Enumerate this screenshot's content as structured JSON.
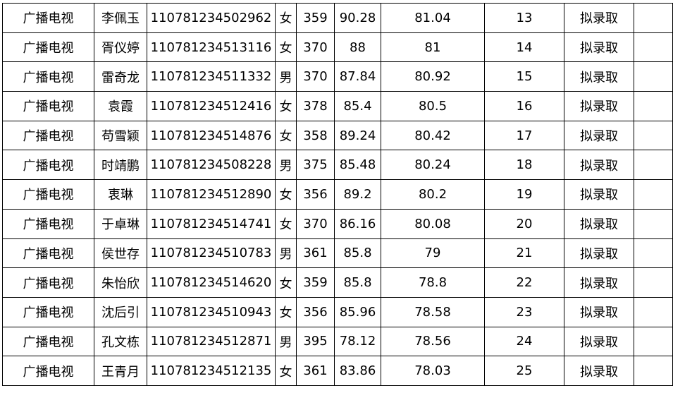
{
  "rows": [
    {
      "major": "广播电视",
      "name": "李佩玉",
      "id": "110781234502962",
      "gender": "女",
      "written": "359",
      "interview": "90.28",
      "total": "81.04",
      "rank": "13",
      "result": "拟录取",
      "note": ""
    },
    {
      "major": "广播电视",
      "name": "胥仪婷",
      "id": "110781234513116",
      "gender": "女",
      "written": "370",
      "interview": "88",
      "total": "81",
      "rank": "14",
      "result": "拟录取",
      "note": ""
    },
    {
      "major": "广播电视",
      "name": "雷奇龙",
      "id": "110781234511332",
      "gender": "男",
      "written": "370",
      "interview": "87.84",
      "total": "80.92",
      "rank": "15",
      "result": "拟录取",
      "note": ""
    },
    {
      "major": "广播电视",
      "name": "袁霞",
      "id": "110781234512416",
      "gender": "女",
      "written": "378",
      "interview": "85.4",
      "total": "80.5",
      "rank": "16",
      "result": "拟录取",
      "note": ""
    },
    {
      "major": "广播电视",
      "name": "苟雪颖",
      "id": "110781234514876",
      "gender": "女",
      "written": "358",
      "interview": "89.24",
      "total": "80.42",
      "rank": "17",
      "result": "拟录取",
      "note": ""
    },
    {
      "major": "广播电视",
      "name": "时靖鹏",
      "id": "110781234508228",
      "gender": "男",
      "written": "375",
      "interview": "85.48",
      "total": "80.24",
      "rank": "18",
      "result": "拟录取",
      "note": ""
    },
    {
      "major": "广播电视",
      "name": "衷琳",
      "id": "110781234512890",
      "gender": "女",
      "written": "356",
      "interview": "89.2",
      "total": "80.2",
      "rank": "19",
      "result": "拟录取",
      "note": ""
    },
    {
      "major": "广播电视",
      "name": "于卓琳",
      "id": "110781234514741",
      "gender": "女",
      "written": "370",
      "interview": "86.16",
      "total": "80.08",
      "rank": "20",
      "result": "拟录取",
      "note": ""
    },
    {
      "major": "广播电视",
      "name": "侯世存",
      "id": "110781234510783",
      "gender": "男",
      "written": "361",
      "interview": "85.8",
      "total": "79",
      "rank": "21",
      "result": "拟录取",
      "note": ""
    },
    {
      "major": "广播电视",
      "name": "朱怡欣",
      "id": "110781234514620",
      "gender": "女",
      "written": "359",
      "interview": "85.8",
      "total": "78.8",
      "rank": "22",
      "result": "拟录取",
      "note": ""
    },
    {
      "major": "广播电视",
      "name": "沈后引",
      "id": "110781234510943",
      "gender": "女",
      "written": "356",
      "interview": "85.96",
      "total": "78.58",
      "rank": "23",
      "result": "拟录取",
      "note": ""
    },
    {
      "major": "广播电视",
      "name": "孔文栋",
      "id": "110781234512871",
      "gender": "男",
      "written": "395",
      "interview": "78.12",
      "total": "78.56",
      "rank": "24",
      "result": "拟录取",
      "note": ""
    },
    {
      "major": "广播电视",
      "name": "王青月",
      "id": "110781234512135",
      "gender": "女",
      "written": "361",
      "interview": "83.86",
      "total": "78.03",
      "rank": "25",
      "result": "拟录取",
      "note": ""
    }
  ]
}
